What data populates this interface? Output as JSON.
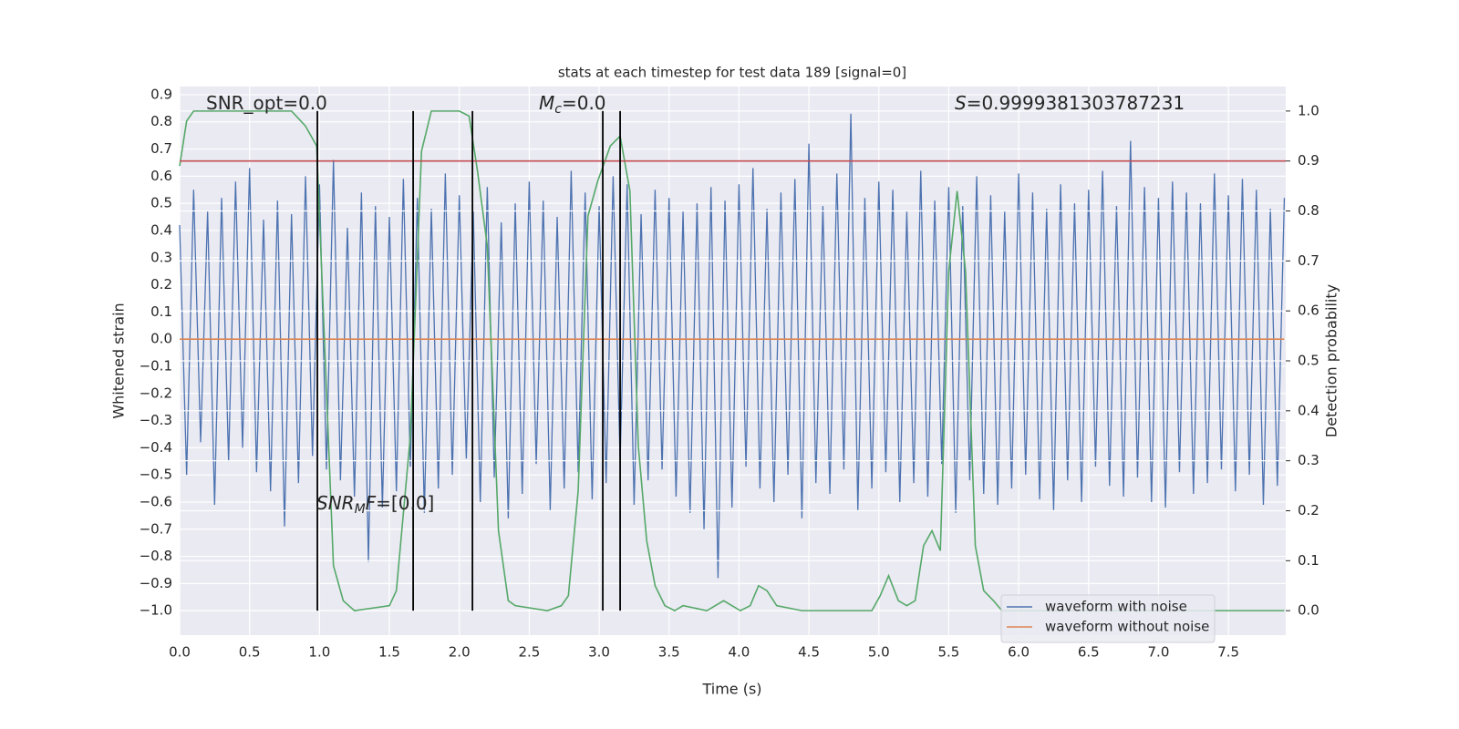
{
  "chart_data": {
    "type": "line",
    "title": "stats at each timestep for test data 189 [signal=0]",
    "xlabel": "Time (s)",
    "ylabel": "Whitened strain",
    "y2label": "Detection probability",
    "xlim": [
      0,
      7.91
    ],
    "ylim": [
      -1.09,
      0.93
    ],
    "y2lim": [
      -0.049,
      1.049
    ],
    "grid": true,
    "legend": "lower right",
    "xticks": [
      {
        "value": 0,
        "label": "0.0"
      },
      {
        "value": 0.5,
        "label": "0.5"
      },
      {
        "value": 1,
        "label": "1.0"
      },
      {
        "value": 1.5,
        "label": "1.5"
      },
      {
        "value": 2,
        "label": "2.0"
      },
      {
        "value": 2.5,
        "label": "2.5"
      },
      {
        "value": 3,
        "label": "3.0"
      },
      {
        "value": 3.5,
        "label": "3.5"
      },
      {
        "value": 4,
        "label": "4.0"
      },
      {
        "value": 4.5,
        "label": "4.5"
      },
      {
        "value": 5,
        "label": "5.0"
      },
      {
        "value": 5.5,
        "label": "5.5"
      },
      {
        "value": 6,
        "label": "6.0"
      },
      {
        "value": 6.5,
        "label": "6.5"
      },
      {
        "value": 7,
        "label": "7.0"
      },
      {
        "value": 7.5,
        "label": "7.5"
      }
    ],
    "yticks": [
      {
        "value": -1.0,
        "label": "−1.0"
      },
      {
        "value": -0.9,
        "label": "−0.9"
      },
      {
        "value": -0.8,
        "label": "−0.8"
      },
      {
        "value": -0.7,
        "label": "−0.7"
      },
      {
        "value": -0.6,
        "label": "−0.6"
      },
      {
        "value": -0.5,
        "label": "−0.5"
      },
      {
        "value": -0.4,
        "label": "−0.4"
      },
      {
        "value": -0.3,
        "label": "−0.3"
      },
      {
        "value": -0.2,
        "label": "−0.2"
      },
      {
        "value": -0.1,
        "label": "−0.1"
      },
      {
        "value": 0,
        "label": "0.0"
      },
      {
        "value": 0.1,
        "label": "0.1"
      },
      {
        "value": 0.2,
        "label": "0.2"
      },
      {
        "value": 0.3,
        "label": "0.3"
      },
      {
        "value": 0.4,
        "label": "0.4"
      },
      {
        "value": 0.5,
        "label": "0.5"
      },
      {
        "value": 0.6,
        "label": "0.6"
      },
      {
        "value": 0.7,
        "label": "0.7"
      },
      {
        "value": 0.8,
        "label": "0.8"
      },
      {
        "value": 0.9,
        "label": "0.9"
      }
    ],
    "y2ticks": [
      {
        "value": 0,
        "label": "0.0"
      },
      {
        "value": 0.1,
        "label": "0.1"
      },
      {
        "value": 0.2,
        "label": "0.2"
      },
      {
        "value": 0.3,
        "label": "0.3"
      },
      {
        "value": 0.4,
        "label": "0.4"
      },
      {
        "value": 0.5,
        "label": "0.5"
      },
      {
        "value": 0.6,
        "label": "0.6"
      },
      {
        "value": 0.7,
        "label": "0.7"
      },
      {
        "value": 0.8,
        "label": "0.8"
      },
      {
        "value": 0.9,
        "label": "0.9"
      },
      {
        "value": 1,
        "label": "1.0"
      }
    ],
    "series": [
      {
        "name": "waveform with noise",
        "color": "#4c72b0",
        "x": [
          0,
          0.05,
          0.1,
          0.15,
          0.2,
          0.25,
          0.3,
          0.35,
          0.4,
          0.45,
          0.5,
          0.55,
          0.6,
          0.65,
          0.7,
          0.75,
          0.8,
          0.85,
          0.9,
          0.95,
          1,
          1.05,
          1.1,
          1.15,
          1.2,
          1.25,
          1.3,
          1.35,
          1.4,
          1.45,
          1.5,
          1.55,
          1.6,
          1.65,
          1.7,
          1.75,
          1.8,
          1.85,
          1.9,
          1.95,
          2,
          2.05,
          2.1,
          2.15,
          2.2,
          2.25,
          2.3,
          2.35,
          2.4,
          2.45,
          2.5,
          2.55,
          2.6,
          2.65,
          2.7,
          2.75,
          2.8,
          2.85,
          2.9,
          2.95,
          3,
          3.05,
          3.1,
          3.15,
          3.2,
          3.25,
          3.3,
          3.35,
          3.4,
          3.45,
          3.5,
          3.55,
          3.6,
          3.65,
          3.7,
          3.75,
          3.8,
          3.85,
          3.9,
          3.95,
          4,
          4.05,
          4.1,
          4.15,
          4.2,
          4.25,
          4.3,
          4.35,
          4.4,
          4.45,
          4.5,
          4.55,
          4.6,
          4.65,
          4.7,
          4.75,
          4.8,
          4.85,
          4.9,
          4.95,
          5,
          5.05,
          5.1,
          5.15,
          5.2,
          5.25,
          5.3,
          5.35,
          5.4,
          5.45,
          5.5,
          5.55,
          5.6,
          5.65,
          5.7,
          5.75,
          5.8,
          5.85,
          5.9,
          5.95,
          6,
          6.05,
          6.1,
          6.15,
          6.2,
          6.25,
          6.3,
          6.35,
          6.4,
          6.45,
          6.5,
          6.55,
          6.6,
          6.65,
          6.7,
          6.75,
          6.8,
          6.85,
          6.9,
          6.95,
          7,
          7.05,
          7.1,
          7.15,
          7.2,
          7.25,
          7.3,
          7.35,
          7.4,
          7.45,
          7.5,
          7.55,
          7.6,
          7.65,
          7.7,
          7.75,
          7.8,
          7.85,
          7.9
        ],
        "values": [
          0.42,
          -0.5,
          0.55,
          -0.38,
          0.47,
          -0.61,
          0.52,
          -0.45,
          0.58,
          -0.4,
          0.63,
          -0.49,
          0.44,
          -0.56,
          0.51,
          -0.69,
          0.46,
          -0.53,
          0.6,
          -0.43,
          0.57,
          -0.48,
          0.66,
          -0.52,
          0.41,
          -0.58,
          0.54,
          -0.82,
          0.49,
          -0.62,
          0.45,
          -0.56,
          0.59,
          -0.47,
          0.52,
          -0.64,
          0.48,
          -0.55,
          0.61,
          -0.5,
          0.53,
          -0.44,
          0.47,
          -0.6,
          0.56,
          -0.51,
          0.43,
          -0.66,
          0.5,
          -0.57,
          0.58,
          -0.46,
          0.51,
          -0.63,
          0.45,
          -0.55,
          0.62,
          -0.49,
          0.54,
          -0.59,
          0.49,
          -0.53,
          0.6,
          -0.45,
          0.57,
          -0.61,
          0.46,
          -0.52,
          0.55,
          -0.48,
          0.52,
          -0.58,
          0.47,
          -0.64,
          0.5,
          -0.7,
          0.56,
          -0.88,
          0.51,
          -0.62,
          0.57,
          -0.47,
          0.63,
          -0.55,
          0.48,
          -0.6,
          0.54,
          -0.5,
          0.59,
          -0.66,
          0.72,
          -0.53,
          0.49,
          -0.57,
          0.61,
          -0.48,
          0.83,
          -0.63,
          0.52,
          -0.55,
          0.58,
          -0.49,
          0.55,
          -0.6,
          0.47,
          -0.53,
          0.62,
          -0.58,
          0.51,
          -0.46,
          0.56,
          -0.64,
          0.49,
          -0.52,
          0.6,
          -0.57,
          0.53,
          -0.61,
          0.47,
          -0.55,
          0.61,
          -0.5,
          0.54,
          -0.59,
          0.48,
          -0.63,
          0.57,
          -0.52,
          0.5,
          -0.6,
          0.55,
          -0.47,
          0.62,
          -0.54,
          0.49,
          -0.58,
          0.73,
          -0.51,
          0.56,
          -0.6,
          0.52,
          -0.62,
          0.58,
          -0.49,
          0.54,
          -0.57,
          0.5,
          -0.53,
          0.61,
          -0.48,
          0.53,
          -0.56,
          0.59,
          -0.5,
          0.55,
          -0.61,
          0.48,
          -0.54,
          0.52
        ]
      },
      {
        "name": "waveform without noise",
        "color": "#dd8452",
        "x": [
          0,
          7.9
        ],
        "values": [
          0,
          0
        ]
      },
      {
        "color": "#55a868",
        "axis": "y2",
        "x": [
          0,
          0.05,
          0.1,
          0.8,
          0.9,
          0.98,
          1.1,
          1.17,
          1.25,
          1.5,
          1.55,
          1.65,
          1.73,
          1.8,
          1.9,
          2.0,
          2.07,
          2.13,
          2.2,
          2.28,
          2.35,
          2.4,
          2.63,
          2.73,
          2.78,
          2.85,
          2.92,
          2.99,
          3.08,
          3.15,
          3.22,
          3.28,
          3.34,
          3.4,
          3.47,
          3.54,
          3.6,
          3.77,
          3.83,
          3.89,
          3.95,
          4.01,
          4.08,
          4.14,
          4.2,
          4.27,
          4.45,
          4.62,
          4.95,
          5.01,
          5.07,
          5.14,
          5.2,
          5.26,
          5.32,
          5.38,
          5.44,
          5.5,
          5.56,
          5.62,
          5.69,
          5.75,
          5.82,
          5.88,
          6.5,
          7.0,
          7.5,
          7.85,
          7.9
        ],
        "values": [
          0.89,
          0.98,
          1.0,
          1.0,
          0.97,
          0.93,
          0.09,
          0.02,
          0.0,
          0.01,
          0.04,
          0.35,
          0.92,
          1.0,
          1.0,
          1.0,
          0.99,
          0.88,
          0.73,
          0.16,
          0.02,
          0.01,
          0.0,
          0.01,
          0.03,
          0.24,
          0.79,
          0.86,
          0.93,
          0.95,
          0.84,
          0.33,
          0.14,
          0.05,
          0.01,
          0.0,
          0.01,
          0.0,
          0.01,
          0.02,
          0.01,
          0.0,
          0.01,
          0.05,
          0.04,
          0.01,
          0.0,
          0.0,
          0.0,
          0.03,
          0.07,
          0.02,
          0.01,
          0.02,
          0.13,
          0.16,
          0.12,
          0.68,
          0.84,
          0.68,
          0.13,
          0.04,
          0.02,
          0.0,
          0.0,
          0.0,
          0.0,
          0.0,
          0.0
        ]
      }
    ],
    "hlines": [
      {
        "value": 0.9,
        "axis": "y2",
        "color": "#c44e52"
      }
    ],
    "vlines": {
      "x": [
        0.985,
        1.67,
        2.094,
        3.026,
        3.15
      ],
      "ymin": 0,
      "ymax": 1,
      "axis": "y2",
      "color": "#000000"
    },
    "annotations": [
      {
        "text": "SNR_opt=0.0"
      },
      {
        "italic": "M",
        "sub": "c",
        "text": "=0.0"
      },
      {
        "italic": "S",
        "text": "=0.9999381303787231"
      },
      {
        "italic": "SNR",
        "sub": "M",
        "italic2": "F",
        "text": "=[0.0]"
      }
    ]
  }
}
